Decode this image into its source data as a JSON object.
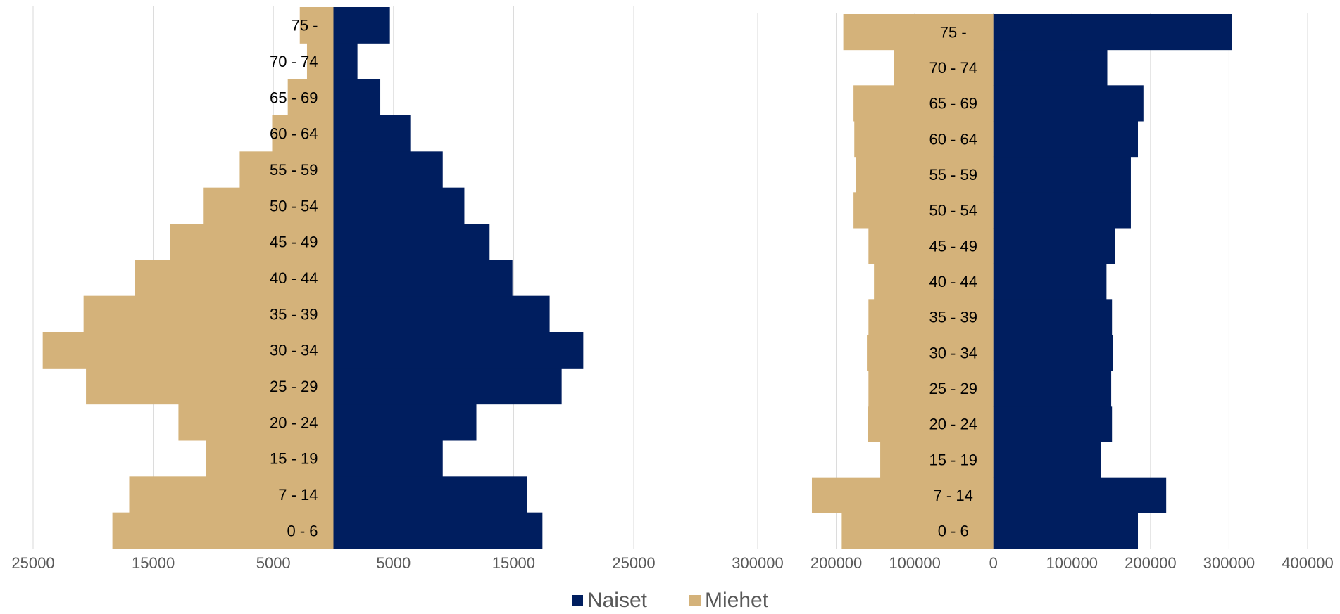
{
  "chart_data": [
    {
      "type": "bar",
      "orientation": "horizontal",
      "subtype": "population-pyramid",
      "categories": [
        "0 - 6",
        "7 - 14",
        "15 - 19",
        "20 - 24",
        "25 - 29",
        "30 - 34",
        "35 - 39",
        "40 - 44",
        "45 - 49",
        "50 - 54",
        "55 - 59",
        "60 - 64",
        "65 - 69",
        "70 - 74",
        "75 -"
      ],
      "series": [
        {
          "name": "Naiset",
          "side": "right",
          "color": "#001e5f",
          "values": [
            17400,
            16100,
            9100,
            11900,
            19000,
            20800,
            18000,
            14900,
            13000,
            10900,
            9100,
            6400,
            3900,
            2000,
            4700
          ]
        },
        {
          "name": "Miehet",
          "side": "left",
          "color": "#d4b27a",
          "values": [
            18400,
            17000,
            10600,
            12900,
            20600,
            24200,
            20800,
            16500,
            13600,
            10800,
            7800,
            5100,
            3800,
            2200,
            2800
          ]
        }
      ],
      "xticks": [
        "25000",
        "15000",
        "5000",
        "5000",
        "15000",
        "25000"
      ],
      "xlim": [
        -25000,
        25000
      ],
      "grid": true,
      "title": "",
      "xlabel": "",
      "ylabel": ""
    },
    {
      "type": "bar",
      "orientation": "horizontal",
      "subtype": "population-pyramid",
      "categories": [
        "0 - 6",
        "7 - 14",
        "15 - 19",
        "20 - 24",
        "25 - 29",
        "30 - 34",
        "35 - 39",
        "40 - 44",
        "45 - 49",
        "50 - 54",
        "55 - 59",
        "60 - 64",
        "65 - 69",
        "70 - 74",
        "75 -"
      ],
      "series": [
        {
          "name": "Naiset",
          "side": "right",
          "color": "#001e5f",
          "values": [
            184000,
            220000,
            137000,
            151000,
            150000,
            152000,
            151000,
            144000,
            155000,
            175000,
            175000,
            184000,
            191000,
            145000,
            304000
          ]
        },
        {
          "name": "Miehet",
          "side": "left",
          "color": "#d4b27a",
          "values": [
            193000,
            231000,
            144000,
            160000,
            159000,
            161000,
            159000,
            152000,
            159000,
            178000,
            175000,
            177000,
            178000,
            127000,
            191000
          ]
        }
      ],
      "xticks": [
        "300000",
        "200000",
        "100000",
        "0",
        "100000",
        "200000",
        "300000",
        "400000"
      ],
      "xlim": [
        -300000,
        400000
      ],
      "grid": true,
      "title": "",
      "xlabel": "",
      "ylabel": ""
    }
  ],
  "legend": {
    "position": "bottom",
    "items": [
      {
        "label": "Naiset",
        "color": "#001e5f"
      },
      {
        "label": "Miehet",
        "color": "#d4b27a"
      }
    ]
  },
  "colors": {
    "women": "#001e5f",
    "men": "#d4b27a",
    "grid": "#d9d9d9",
    "tick_text": "#595959"
  }
}
